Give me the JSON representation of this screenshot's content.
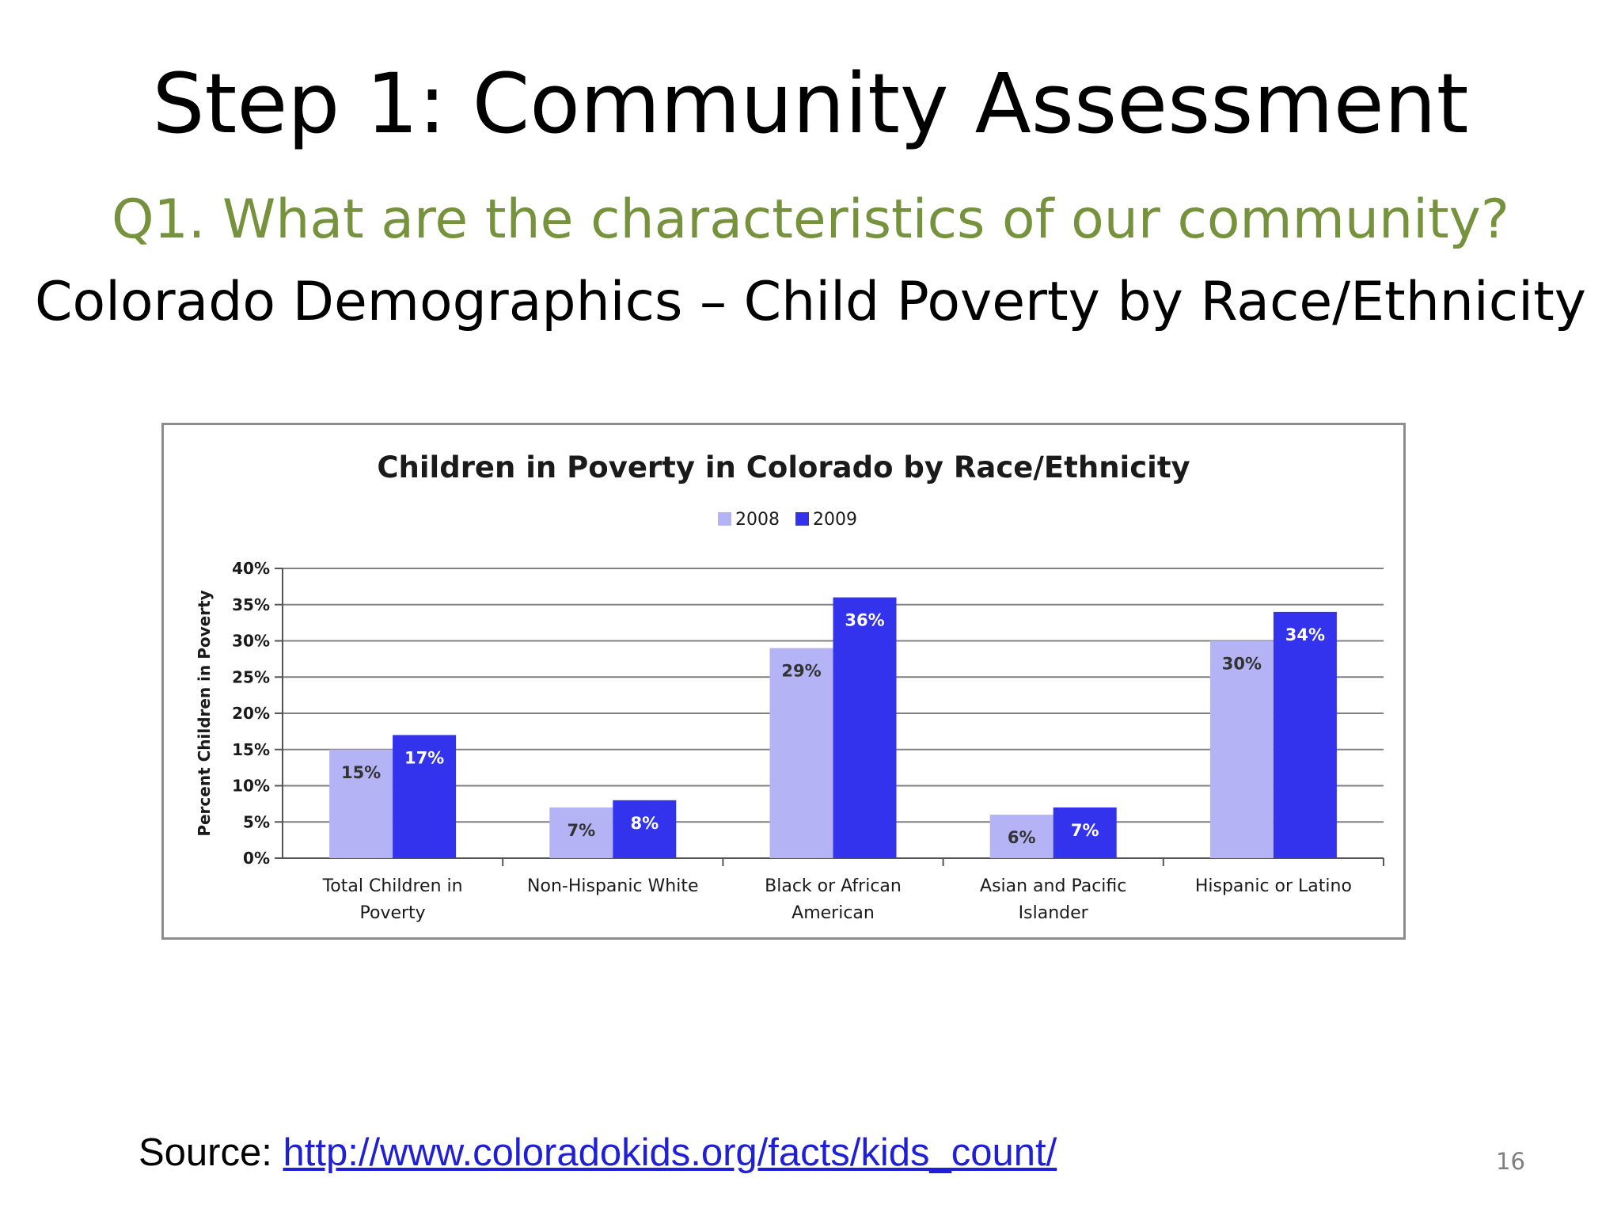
{
  "slide": {
    "title": "Step 1: Community Assessment",
    "subtitle": "Q1. What are the characteristics of our community?",
    "heading": "Colorado Demographics – Child Poverty by Race/Ethnicity",
    "source_label": "Source: ",
    "source_link": "http://www.coloradokids.org/facts/kids_count/",
    "slide_number": "16"
  },
  "colors": {
    "subtitle": "#76923c",
    "series_2008": "#b3b3f5",
    "series_2009": "#3333ee",
    "grid": "#808080",
    "frame": "#8c8c8c"
  },
  "chart_data": {
    "type": "bar",
    "title": "Children in Poverty in Colorado by Race/Ethnicity",
    "ylabel": "Percent Children in Poverty",
    "xlabel": "",
    "ylim": [
      0,
      40
    ],
    "yticks": [
      "0%",
      "5%",
      "10%",
      "15%",
      "20%",
      "25%",
      "30%",
      "35%",
      "40%"
    ],
    "grid": true,
    "legend_position": "top-center",
    "categories": [
      [
        "Total Children in",
        "Poverty"
      ],
      [
        "Non-Hispanic White"
      ],
      [
        "Black or African",
        "American"
      ],
      [
        "Asian and Pacific",
        "Islander"
      ],
      [
        "Hispanic or Latino"
      ]
    ],
    "series": [
      {
        "name": "2008",
        "values": [
          15,
          7,
          29,
          6,
          30
        ],
        "labels": [
          "15%",
          "7%",
          "29%",
          "6%",
          "30%"
        ]
      },
      {
        "name": "2009",
        "values": [
          17,
          8,
          36,
          7,
          34
        ],
        "labels": [
          "17%",
          "8%",
          "36%",
          "7%",
          "34%"
        ]
      }
    ]
  }
}
